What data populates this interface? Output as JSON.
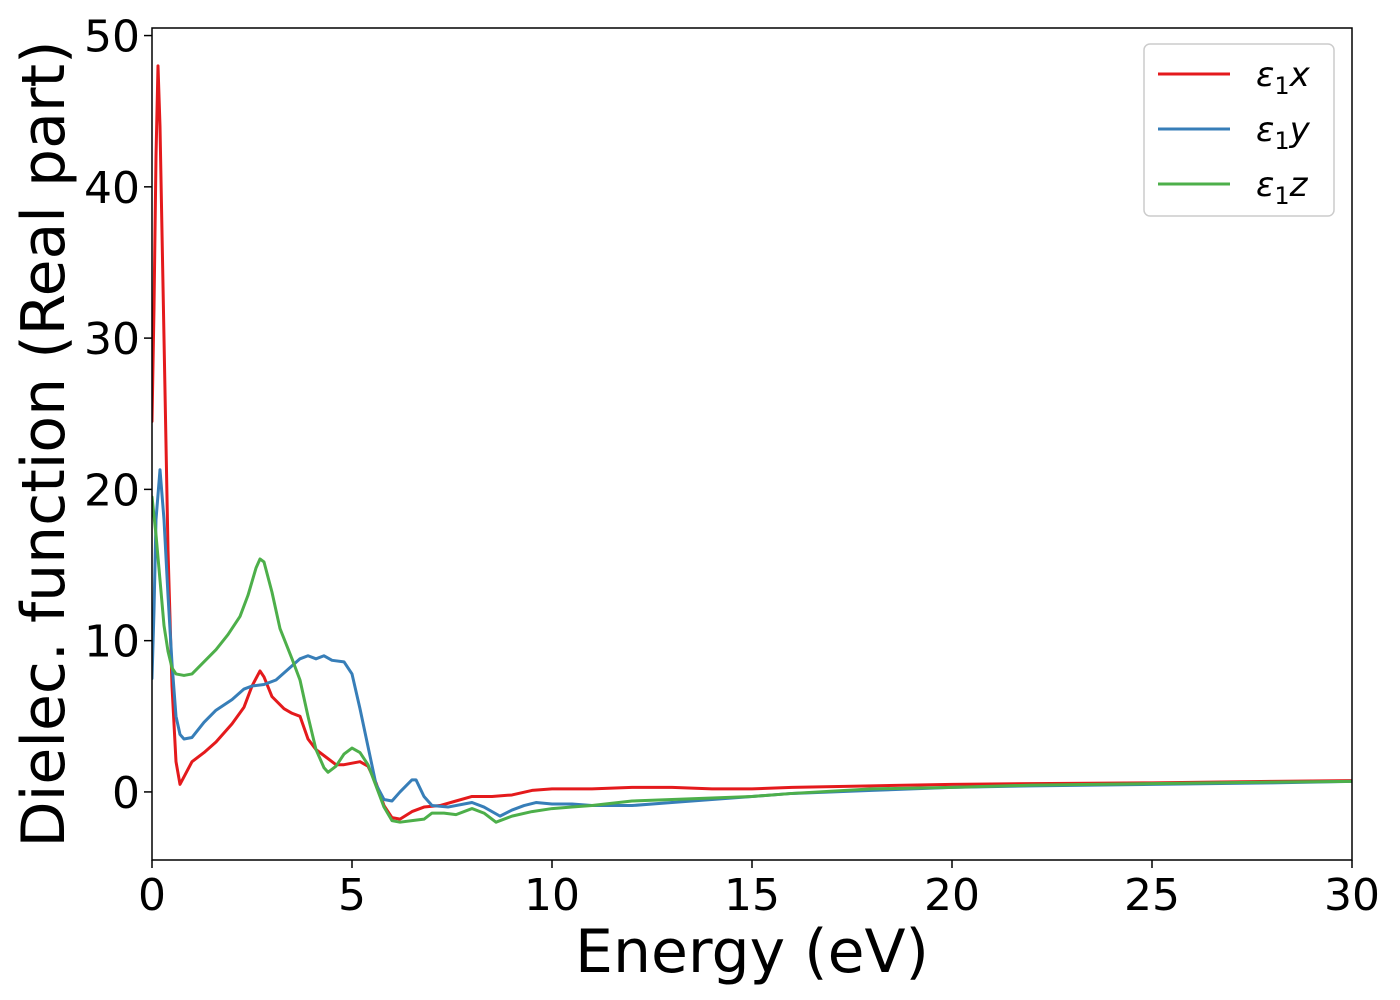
{
  "chart_data": {
    "type": "line",
    "title": "",
    "xlabel": "Energy (eV)",
    "ylabel": "Dielec. function (Real part)",
    "xlim": [
      0,
      30
    ],
    "ylim": [
      -4.5,
      50.5
    ],
    "xticks": [
      0,
      5,
      10,
      15,
      20,
      25,
      30
    ],
    "yticks": [
      0,
      10,
      20,
      30,
      40,
      50
    ],
    "grid": false,
    "legend_position": "top-right",
    "series": [
      {
        "name": "ε₁x",
        "legend_base": "ε",
        "legend_sub": "1",
        "legend_suffix": "x",
        "color": "#e41a1c",
        "points": [
          [
            0.0,
            24.5
          ],
          [
            0.05,
            32
          ],
          [
            0.1,
            42
          ],
          [
            0.15,
            48
          ],
          [
            0.2,
            44
          ],
          [
            0.3,
            30
          ],
          [
            0.4,
            16
          ],
          [
            0.5,
            7
          ],
          [
            0.6,
            2
          ],
          [
            0.7,
            0.5
          ],
          [
            0.8,
            1.0
          ],
          [
            1.0,
            2.0
          ],
          [
            1.3,
            2.6
          ],
          [
            1.6,
            3.3
          ],
          [
            2.0,
            4.5
          ],
          [
            2.3,
            5.6
          ],
          [
            2.5,
            7.0
          ],
          [
            2.7,
            8.0
          ],
          [
            2.8,
            7.6
          ],
          [
            3.0,
            6.3
          ],
          [
            3.3,
            5.5
          ],
          [
            3.5,
            5.2
          ],
          [
            3.7,
            5.0
          ],
          [
            3.9,
            3.5
          ],
          [
            4.1,
            2.8
          ],
          [
            4.3,
            2.4
          ],
          [
            4.6,
            1.8
          ],
          [
            4.8,
            1.8
          ],
          [
            5.0,
            1.9
          ],
          [
            5.2,
            2.0
          ],
          [
            5.4,
            1.7
          ],
          [
            5.6,
            0.6
          ],
          [
            5.8,
            -0.9
          ],
          [
            6.0,
            -1.7
          ],
          [
            6.2,
            -1.8
          ],
          [
            6.5,
            -1.3
          ],
          [
            6.8,
            -1.0
          ],
          [
            7.2,
            -0.9
          ],
          [
            7.6,
            -0.6
          ],
          [
            8.0,
            -0.3
          ],
          [
            8.5,
            -0.3
          ],
          [
            9.0,
            -0.2
          ],
          [
            9.5,
            0.1
          ],
          [
            10.0,
            0.2
          ],
          [
            11.0,
            0.2
          ],
          [
            12.0,
            0.3
          ],
          [
            13.0,
            0.3
          ],
          [
            14.0,
            0.2
          ],
          [
            15.0,
            0.2
          ],
          [
            16.0,
            0.3
          ],
          [
            18.0,
            0.4
          ],
          [
            20.0,
            0.5
          ],
          [
            22.0,
            0.55
          ],
          [
            25.0,
            0.6
          ],
          [
            28.0,
            0.7
          ],
          [
            30.0,
            0.75
          ]
        ]
      },
      {
        "name": "ε₁y",
        "legend_base": "ε",
        "legend_sub": "1",
        "legend_suffix": "y",
        "color": "#377eb8",
        "points": [
          [
            0.0,
            7.5
          ],
          [
            0.05,
            12
          ],
          [
            0.1,
            18
          ],
          [
            0.2,
            21.3
          ],
          [
            0.3,
            18
          ],
          [
            0.4,
            13
          ],
          [
            0.5,
            8.5
          ],
          [
            0.6,
            5
          ],
          [
            0.7,
            3.8
          ],
          [
            0.8,
            3.5
          ],
          [
            1.0,
            3.6
          ],
          [
            1.3,
            4.6
          ],
          [
            1.6,
            5.4
          ],
          [
            2.0,
            6.1
          ],
          [
            2.3,
            6.8
          ],
          [
            2.5,
            7.0
          ],
          [
            2.8,
            7.1
          ],
          [
            3.1,
            7.4
          ],
          [
            3.4,
            8.1
          ],
          [
            3.7,
            8.8
          ],
          [
            3.9,
            9.0
          ],
          [
            4.1,
            8.8
          ],
          [
            4.3,
            9.0
          ],
          [
            4.5,
            8.7
          ],
          [
            4.8,
            8.6
          ],
          [
            5.0,
            7.8
          ],
          [
            5.2,
            5.5
          ],
          [
            5.4,
            3.0
          ],
          [
            5.6,
            0.5
          ],
          [
            5.8,
            -0.5
          ],
          [
            6.0,
            -0.6
          ],
          [
            6.2,
            0.0
          ],
          [
            6.5,
            0.8
          ],
          [
            6.6,
            0.8
          ],
          [
            6.8,
            -0.3
          ],
          [
            7.0,
            -0.9
          ],
          [
            7.4,
            -1.0
          ],
          [
            7.8,
            -0.8
          ],
          [
            8.0,
            -0.7
          ],
          [
            8.3,
            -1.0
          ],
          [
            8.7,
            -1.6
          ],
          [
            9.0,
            -1.2
          ],
          [
            9.3,
            -0.9
          ],
          [
            9.6,
            -0.7
          ],
          [
            10.0,
            -0.8
          ],
          [
            10.5,
            -0.8
          ],
          [
            11.0,
            -0.9
          ],
          [
            12.0,
            -0.9
          ],
          [
            13.0,
            -0.7
          ],
          [
            14.0,
            -0.5
          ],
          [
            15.0,
            -0.3
          ],
          [
            16.0,
            -0.1
          ],
          [
            18.0,
            0.1
          ],
          [
            20.0,
            0.3
          ],
          [
            22.0,
            0.4
          ],
          [
            25.0,
            0.5
          ],
          [
            28.0,
            0.6
          ],
          [
            30.0,
            0.7
          ]
        ]
      },
      {
        "name": "ε₁z",
        "legend_base": "ε",
        "legend_sub": "1",
        "legend_suffix": "z",
        "color": "#4daf4a",
        "points": [
          [
            0.0,
            19.5
          ],
          [
            0.1,
            17
          ],
          [
            0.2,
            14
          ],
          [
            0.3,
            11
          ],
          [
            0.4,
            9.3
          ],
          [
            0.5,
            8.2
          ],
          [
            0.6,
            7.8
          ],
          [
            0.8,
            7.7
          ],
          [
            1.0,
            7.8
          ],
          [
            1.3,
            8.6
          ],
          [
            1.6,
            9.4
          ],
          [
            1.9,
            10.4
          ],
          [
            2.2,
            11.6
          ],
          [
            2.4,
            13.0
          ],
          [
            2.6,
            14.8
          ],
          [
            2.7,
            15.4
          ],
          [
            2.8,
            15.2
          ],
          [
            3.0,
            13.2
          ],
          [
            3.2,
            10.8
          ],
          [
            3.5,
            8.8
          ],
          [
            3.7,
            7.4
          ],
          [
            3.9,
            5.0
          ],
          [
            4.1,
            2.8
          ],
          [
            4.3,
            1.6
          ],
          [
            4.4,
            1.3
          ],
          [
            4.6,
            1.7
          ],
          [
            4.8,
            2.5
          ],
          [
            5.0,
            2.9
          ],
          [
            5.2,
            2.6
          ],
          [
            5.4,
            1.8
          ],
          [
            5.6,
            0.4
          ],
          [
            5.8,
            -1.0
          ],
          [
            6.0,
            -1.9
          ],
          [
            6.2,
            -2.0
          ],
          [
            6.5,
            -1.9
          ],
          [
            6.8,
            -1.8
          ],
          [
            7.0,
            -1.4
          ],
          [
            7.3,
            -1.4
          ],
          [
            7.6,
            -1.5
          ],
          [
            8.0,
            -1.1
          ],
          [
            8.3,
            -1.4
          ],
          [
            8.6,
            -2.0
          ],
          [
            9.0,
            -1.6
          ],
          [
            9.5,
            -1.3
          ],
          [
            10.0,
            -1.1
          ],
          [
            10.5,
            -1.0
          ],
          [
            11.0,
            -0.9
          ],
          [
            12.0,
            -0.6
          ],
          [
            13.0,
            -0.5
          ],
          [
            14.0,
            -0.4
          ],
          [
            15.0,
            -0.3
          ],
          [
            16.0,
            -0.1
          ],
          [
            18.0,
            0.2
          ],
          [
            20.0,
            0.3
          ],
          [
            22.0,
            0.45
          ],
          [
            25.0,
            0.55
          ],
          [
            28.0,
            0.65
          ],
          [
            30.0,
            0.7
          ]
        ]
      }
    ]
  }
}
